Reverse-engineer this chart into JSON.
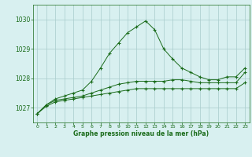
{
  "hours": [
    0,
    1,
    2,
    3,
    4,
    5,
    6,
    7,
    8,
    9,
    10,
    11,
    12,
    13,
    14,
    15,
    16,
    17,
    18,
    19,
    20,
    21,
    22,
    23
  ],
  "line_top": [
    1026.8,
    1027.1,
    1027.3,
    1027.4,
    1027.5,
    1027.6,
    1027.9,
    1028.35,
    1028.85,
    1029.2,
    1029.55,
    1029.75,
    1029.95,
    1029.65,
    1029.0,
    1028.65,
    1028.35,
    1028.2,
    1028.05,
    1027.95,
    1027.95,
    1028.05,
    1028.05,
    1028.35
  ],
  "line_mid": [
    1026.8,
    1027.1,
    1027.25,
    1027.3,
    1027.35,
    1027.4,
    1027.5,
    1027.6,
    1027.7,
    1027.8,
    1027.85,
    1027.9,
    1027.9,
    1027.9,
    1027.9,
    1027.95,
    1027.95,
    1027.9,
    1027.85,
    1027.85,
    1027.85,
    1027.85,
    1027.85,
    1028.2
  ],
  "line_bot": [
    1026.8,
    1027.05,
    1027.2,
    1027.25,
    1027.3,
    1027.35,
    1027.4,
    1027.45,
    1027.5,
    1027.55,
    1027.6,
    1027.65,
    1027.65,
    1027.65,
    1027.65,
    1027.65,
    1027.65,
    1027.65,
    1027.65,
    1027.65,
    1027.65,
    1027.65,
    1027.65,
    1027.85
  ],
  "line_color": "#1a6b1a",
  "bg_color": "#d8f0f0",
  "grid_color": "#a8cccc",
  "xlabel": "Graphe pression niveau de la mer (hPa)",
  "xlabel_color": "#1a6b1a",
  "ylim": [
    1026.5,
    1030.5
  ],
  "yticks": [
    1027,
    1028,
    1029,
    1030
  ],
  "xlim": [
    -0.5,
    23.5
  ],
  "xticks": [
    0,
    1,
    2,
    3,
    4,
    5,
    6,
    7,
    8,
    9,
    10,
    11,
    12,
    13,
    14,
    15,
    16,
    17,
    18,
    19,
    20,
    21,
    22,
    23
  ]
}
